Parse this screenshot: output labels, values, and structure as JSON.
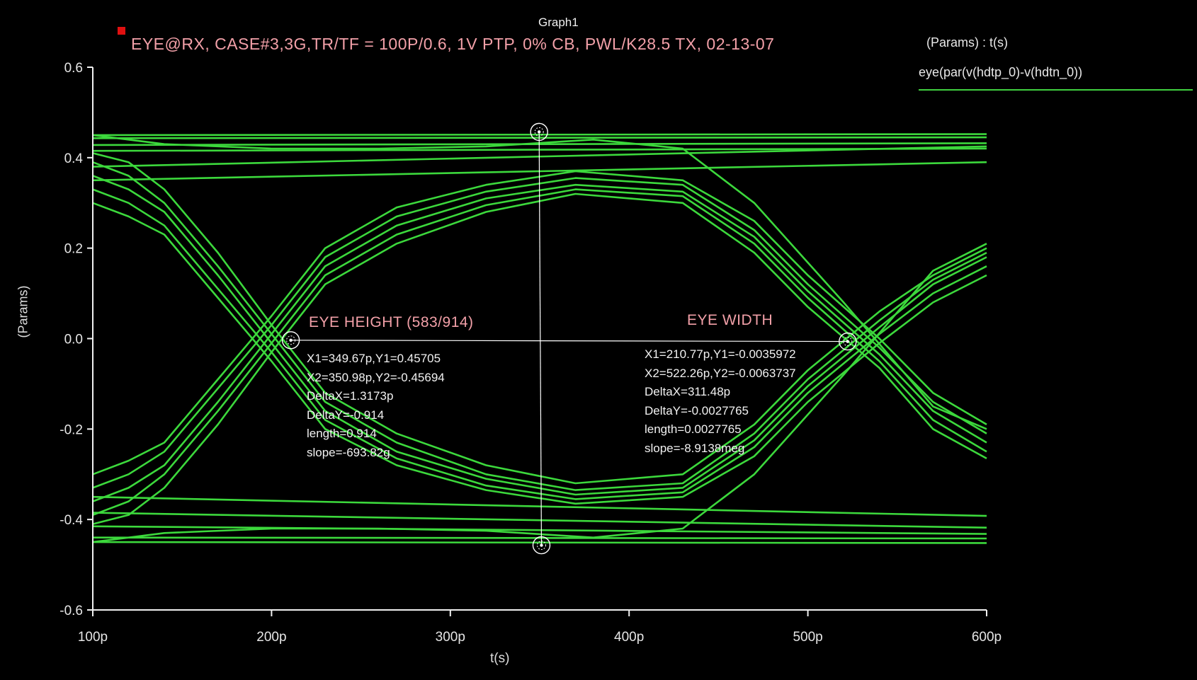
{
  "window": {
    "graph_name": "Graph1"
  },
  "colors": {
    "background": "#000000",
    "trace": "#3cd83c",
    "axes": "#f0f0f0",
    "title": "#f2a0a8",
    "marker": "#e01010"
  },
  "legend": {
    "title": "(Params) : t(s)",
    "entry": "eye(par(v(hdtp_0)-v(hdtn_0))"
  },
  "chart_data": {
    "type": "line",
    "title": "EYE@RX, CASE#3,3G,TR/TF = 100P/0.6, 1V PTP, 0% CB, PWL/K28.5 TX, 02-13-07",
    "xlabel": "t(s)",
    "ylabel": "(Params)",
    "xlim": [
      100,
      600
    ],
    "ylim": [
      -0.6,
      0.6
    ],
    "x_unit": "p",
    "x_ticks": [
      "100p",
      "200p",
      "300p",
      "400p",
      "500p",
      "600p"
    ],
    "y_ticks": [
      "0.6",
      "0.4",
      "0.2",
      "0.0",
      "-0.2",
      "-0.4",
      "-0.6"
    ],
    "grid": false,
    "series": [
      {
        "name": "eye(par(v(hdtp_0)-v(hdtn_0))",
        "traces": [
          {
            "x": [
              100,
              600
            ],
            "y": [
              0.45,
              0.452
            ]
          },
          {
            "x": [
              100,
              600
            ],
            "y": [
              0.443,
              0.445
            ]
          },
          {
            "x": [
              100,
              600
            ],
            "y": [
              0.428,
              0.432
            ]
          },
          {
            "x": [
              100,
              600
            ],
            "y": [
              0.415,
              0.42
            ]
          },
          {
            "x": [
              100,
              600
            ],
            "y": [
              0.38,
              0.425
            ]
          },
          {
            "x": [
              100,
              600
            ],
            "y": [
              0.35,
              0.39
            ]
          },
          {
            "x": [
              100,
              600
            ],
            "y": [
              -0.35,
              -0.392
            ]
          },
          {
            "x": [
              100,
              600
            ],
            "y": [
              -0.385,
              -0.418
            ]
          },
          {
            "x": [
              100,
              600
            ],
            "y": [
              -0.415,
              -0.432
            ]
          },
          {
            "x": [
              100,
              600
            ],
            "y": [
              -0.44,
              -0.442
            ]
          },
          {
            "x": [
              100,
              600
            ],
            "y": [
              -0.45,
              -0.452
            ]
          },
          {
            "x": [
              100,
              120,
              140,
              170,
              200,
              230,
              270,
              320,
              370,
              430,
              470,
              500,
              540,
              570,
              600
            ],
            "y": [
              0.41,
              0.39,
              0.33,
              0.19,
              0.03,
              -0.12,
              -0.21,
              -0.28,
              -0.32,
              -0.3,
              -0.19,
              -0.07,
              0.06,
              0.14,
              0.2
            ]
          },
          {
            "x": [
              100,
              120,
              140,
              170,
              200,
              230,
              270,
              320,
              370,
              430,
              470,
              500,
              540,
              570,
              600
            ],
            "y": [
              0.39,
              0.36,
              0.3,
              0.16,
              0.01,
              -0.14,
              -0.23,
              -0.3,
              -0.335,
              -0.32,
              -0.21,
              -0.09,
              0.04,
              0.13,
              0.19
            ]
          },
          {
            "x": [
              100,
              120,
              140,
              170,
              200,
              230,
              270,
              320,
              370,
              430,
              470,
              500,
              540,
              570,
              600
            ],
            "y": [
              0.36,
              0.33,
              0.28,
              0.14,
              -0.01,
              -0.16,
              -0.25,
              -0.31,
              -0.345,
              -0.33,
              -0.225,
              -0.105,
              0.025,
              0.12,
              0.18
            ]
          },
          {
            "x": [
              100,
              120,
              140,
              170,
              200,
              230,
              270,
              320,
              370,
              430,
              470,
              500,
              540,
              570,
              600
            ],
            "y": [
              0.33,
              0.3,
              0.25,
              0.11,
              -0.03,
              -0.18,
              -0.265,
              -0.325,
              -0.355,
              -0.34,
              -0.24,
              -0.12,
              0.01,
              0.1,
              0.16
            ]
          },
          {
            "x": [
              100,
              120,
              140,
              170,
              200,
              230,
              270,
              320,
              370,
              430,
              470,
              500,
              540,
              570,
              600
            ],
            "y": [
              0.3,
              0.27,
              0.23,
              0.09,
              -0.05,
              -0.2,
              -0.28,
              -0.335,
              -0.365,
              -0.35,
              -0.26,
              -0.14,
              -0.01,
              0.08,
              0.14
            ]
          },
          {
            "x": [
              100,
              120,
              140,
              170,
              200,
              230,
              270,
              320,
              370,
              430,
              470,
              500,
              540,
              570,
              600
            ],
            "y": [
              -0.3,
              -0.27,
              -0.23,
              -0.09,
              0.05,
              0.2,
              0.29,
              0.34,
              0.37,
              0.35,
              0.26,
              0.14,
              0.0,
              -0.12,
              -0.19
            ]
          },
          {
            "x": [
              100,
              120,
              140,
              170,
              200,
              230,
              270,
              320,
              370,
              430,
              470,
              500,
              540,
              570,
              600
            ],
            "y": [
              -0.33,
              -0.3,
              -0.25,
              -0.11,
              0.03,
              0.18,
              0.27,
              0.325,
              0.355,
              0.34,
              0.24,
              0.12,
              -0.02,
              -0.14,
              -0.21
            ]
          },
          {
            "x": [
              100,
              120,
              140,
              170,
              200,
              230,
              270,
              320,
              370,
              430,
              470,
              500,
              540,
              570,
              600
            ],
            "y": [
              -0.36,
              -0.33,
              -0.28,
              -0.14,
              0.01,
              0.16,
              0.25,
              0.31,
              0.34,
              0.325,
              0.225,
              0.105,
              -0.035,
              -0.16,
              -0.23
            ]
          },
          {
            "x": [
              100,
              120,
              140,
              170,
              200,
              230,
              270,
              320,
              370,
              430,
              470,
              500,
              540,
              570,
              600
            ],
            "y": [
              -0.39,
              -0.36,
              -0.3,
              -0.16,
              -0.01,
              0.14,
              0.23,
              0.295,
              0.33,
              0.315,
              0.21,
              0.09,
              -0.05,
              -0.18,
              -0.25
            ]
          },
          {
            "x": [
              100,
              120,
              140,
              170,
              200,
              230,
              270,
              320,
              370,
              430,
              470,
              500,
              540,
              570,
              600
            ],
            "y": [
              -0.41,
              -0.39,
              -0.33,
              -0.19,
              -0.03,
              0.12,
              0.21,
              0.28,
              0.32,
              0.3,
              0.19,
              0.07,
              -0.065,
              -0.2,
              -0.265
            ]
          },
          {
            "x": [
              100,
              140,
              200,
              260,
              320,
              380,
              430,
              470,
              520,
              570,
              600
            ],
            "y": [
              0.45,
              0.43,
              0.42,
              0.42,
              0.425,
              0.44,
              0.42,
              0.3,
              0.08,
              -0.15,
              -0.2
            ]
          },
          {
            "x": [
              100,
              140,
              200,
              260,
              320,
              380,
              430,
              470,
              520,
              570,
              600
            ],
            "y": [
              -0.45,
              -0.43,
              -0.42,
              -0.42,
              -0.425,
              -0.44,
              -0.42,
              -0.3,
              -0.08,
              0.15,
              0.21
            ]
          }
        ]
      }
    ],
    "annotations": {
      "eye_height_label": "EYE HEIGHT (583/914)",
      "eye_width_label": "EYE WIDTH",
      "height_cursor": {
        "x1": 349.67,
        "y1": 0.45705,
        "x2": 350.98,
        "y2": -0.45694
      },
      "width_cursor": {
        "x1": 210.77,
        "y1": -0.0035972,
        "x2": 522.26,
        "y2": -0.0063737
      },
      "height_measure": [
        "X1=349.67p,Y1=0.45705",
        "X2=350.98p,Y2=-0.45694",
        "DeltaX=1.3173p",
        "DeltaY=-0.914",
        "length=0.914",
        "slope=-693.82g"
      ],
      "width_measure": [
        "X1=210.77p,Y1=-0.0035972",
        "X2=522.26p,Y2=-0.0063737",
        "DeltaX=311.48p",
        "DeltaY=-0.0027765",
        "length=0.0027765",
        "slope=-8.9138meg"
      ]
    }
  }
}
